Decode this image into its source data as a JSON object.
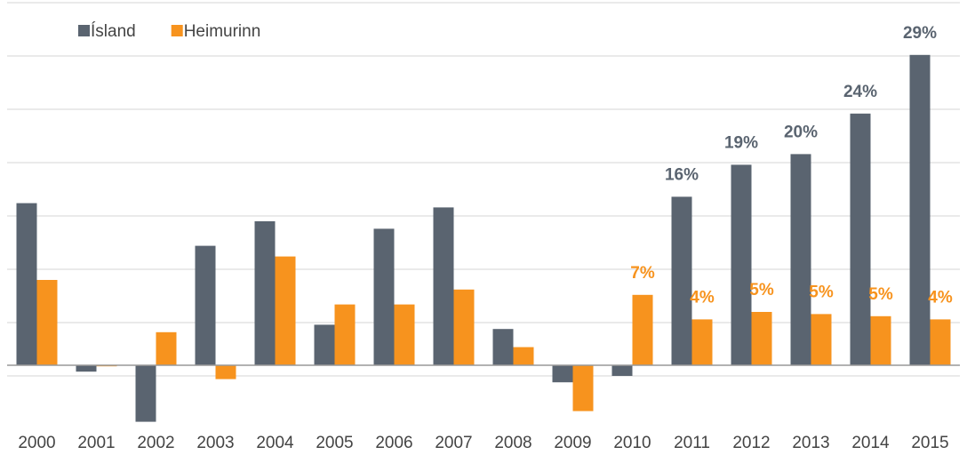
{
  "chart_data": {
    "type": "bar",
    "categories": [
      "2000",
      "2001",
      "2002",
      "2003",
      "2004",
      "2005",
      "2006",
      "2007",
      "2008",
      "2009",
      "2010",
      "2011",
      "2012",
      "2013",
      "2014",
      "2015"
    ],
    "series": [
      {
        "name": "Ísland",
        "color": "#5a6470",
        "values": [
          15.2,
          -0.6,
          -5.3,
          11.2,
          13.5,
          3.8,
          12.8,
          14.8,
          3.4,
          -1.6,
          -1.0,
          15.8,
          18.8,
          19.8,
          23.6,
          29.1
        ],
        "value_labels": [
          null,
          null,
          null,
          null,
          null,
          null,
          null,
          null,
          null,
          null,
          null,
          "16%",
          "19%",
          "20%",
          "24%",
          "29%"
        ]
      },
      {
        "name": "Heimurinn",
        "color": "#f7931e",
        "values": [
          8.0,
          -0.1,
          3.1,
          -1.3,
          10.2,
          5.7,
          5.7,
          7.1,
          1.7,
          -4.3,
          6.6,
          4.3,
          5.0,
          4.8,
          4.6,
          4.3
        ],
        "value_labels": [
          null,
          null,
          null,
          null,
          null,
          null,
          null,
          null,
          null,
          null,
          "7%",
          "4%",
          "5%",
          "5%",
          "5%",
          "4%"
        ]
      }
    ],
    "ylim": [
      -6,
      34
    ],
    "yticks": [
      -1,
      4,
      9,
      14,
      19,
      24,
      29,
      34
    ],
    "grid": true,
    "tick_labels": false,
    "legend": "top-left"
  }
}
